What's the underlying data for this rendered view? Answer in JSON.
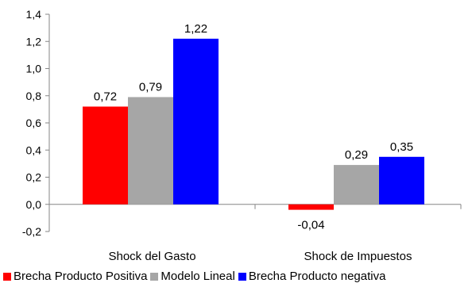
{
  "chart_data": {
    "type": "bar",
    "categories": [
      "Shock del Gasto",
      "Shock de Impuestos"
    ],
    "series": [
      {
        "name": "Brecha Producto Positiva",
        "values": [
          0.72,
          -0.04
        ],
        "labels": [
          "0,72",
          "-0,04"
        ],
        "color": "#ff0000"
      },
      {
        "name": "Modelo Lineal",
        "values": [
          0.79,
          0.29
        ],
        "labels": [
          "0,79",
          "0,29"
        ],
        "color": "#a6a6a6"
      },
      {
        "name": "Brecha Producto negativa",
        "values": [
          1.22,
          0.35
        ],
        "labels": [
          "1,22",
          "0,35"
        ],
        "color": "#0000ff"
      }
    ],
    "ylim": [
      -0.2,
      1.4
    ],
    "yticks": [
      -0.2,
      0.0,
      0.2,
      0.4,
      0.6,
      0.8,
      1.0,
      1.2,
      1.4
    ],
    "ytick_labels": [
      "-0,2",
      "0,0",
      "0,2",
      "0,4",
      "0,6",
      "0,8",
      "1,0",
      "1,2",
      "1,4"
    ],
    "title": "",
    "xlabel": "",
    "ylabel": "",
    "grid": false,
    "legend_position": "bottom"
  }
}
